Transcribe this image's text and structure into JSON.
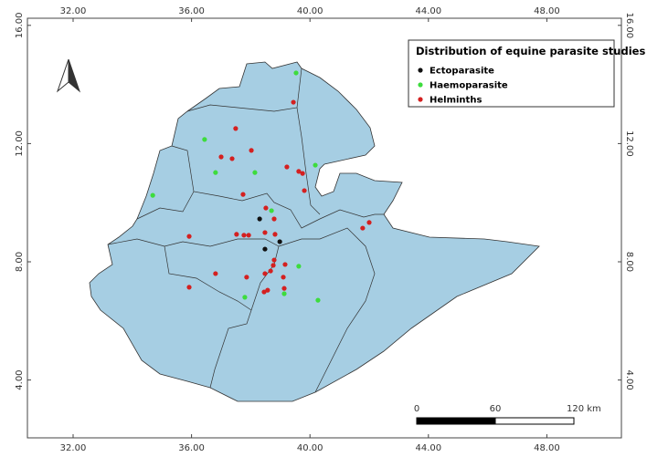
{
  "map": {
    "xticks": [
      {
        "value": 32,
        "label": "32.00"
      },
      {
        "value": 36,
        "label": "36.00"
      },
      {
        "value": 40,
        "label": "40.00"
      },
      {
        "value": 44,
        "label": "44.00"
      },
      {
        "value": 48,
        "label": "48.00"
      }
    ],
    "yticks": [
      {
        "value": 16,
        "label": "16.00"
      },
      {
        "value": 12,
        "label": "12.00"
      },
      {
        "value": 8,
        "label": "8.00"
      },
      {
        "value": 4,
        "label": "4.00"
      }
    ],
    "legend": {
      "title": "Distribution of equine parasite studies"
    },
    "layers": [
      {
        "name": "Ectoparasite",
        "color": "#111111",
        "points": [
          [
            38.3,
            9.45
          ],
          [
            38.48,
            8.43
          ],
          [
            38.98,
            8.68
          ]
        ]
      },
      {
        "name": "Haemoparasite",
        "color": "#3ddc3d",
        "points": [
          [
            39.53,
            14.39
          ],
          [
            36.44,
            12.14
          ],
          [
            36.81,
            11.02
          ],
          [
            38.14,
            11.02
          ],
          [
            34.69,
            10.25
          ],
          [
            38.7,
            9.73
          ],
          [
            40.18,
            11.27
          ],
          [
            39.62,
            7.85
          ],
          [
            39.13,
            6.92
          ],
          [
            37.8,
            6.8
          ],
          [
            40.27,
            6.7
          ]
        ]
      },
      {
        "name": "Helminths",
        "color": "#d42020",
        "points": [
          [
            39.44,
            13.4
          ],
          [
            37.49,
            12.51
          ],
          [
            37.0,
            11.55
          ],
          [
            37.37,
            11.49
          ],
          [
            38.02,
            11.77
          ],
          [
            39.22,
            11.21
          ],
          [
            39.62,
            11.06
          ],
          [
            39.75,
            10.99
          ],
          [
            39.81,
            10.41
          ],
          [
            37.74,
            10.28
          ],
          [
            38.51,
            9.82
          ],
          [
            38.79,
            9.45
          ],
          [
            35.92,
            8.86
          ],
          [
            37.52,
            8.93
          ],
          [
            37.77,
            8.9
          ],
          [
            37.93,
            8.9
          ],
          [
            38.48,
            8.99
          ],
          [
            38.82,
            8.93
          ],
          [
            36.81,
            7.6
          ],
          [
            35.92,
            7.14
          ],
          [
            37.86,
            7.48
          ],
          [
            38.48,
            7.6
          ],
          [
            38.79,
            8.06
          ],
          [
            38.76,
            7.88
          ],
          [
            39.16,
            7.91
          ],
          [
            38.67,
            7.69
          ],
          [
            39.1,
            7.48
          ],
          [
            38.57,
            7.04
          ],
          [
            38.45,
            6.98
          ],
          [
            39.13,
            7.1
          ],
          [
            42.0,
            9.33
          ],
          [
            41.78,
            9.14
          ]
        ]
      }
    ],
    "scale_bar": {
      "labels": [
        "0",
        "60",
        "120 km"
      ]
    }
  }
}
